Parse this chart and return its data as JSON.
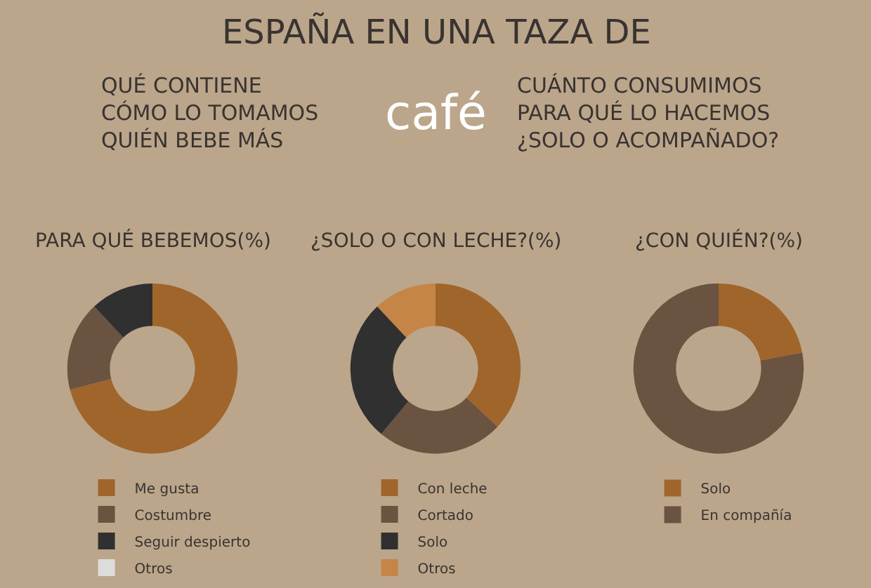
{
  "chart_data": [
    {
      "type": "other",
      "title": "ESPAÑA EN UNA TAZA DE",
      "annotations": [
        "café",
        "QUÉ CONTIENE\nCÓMO LO TOMAMOS\nQUIÉN BEBE MÁS",
        "CUÁNTO CONSUMIMOS\nPARA QUÉ LO HACEMOS\n¿SOLO O ACOMPAÑADO?"
      ]
    },
    {
      "type": "donut",
      "title": "PARA QUÉ BEBEMOS(%)",
      "categories": [
        "Me gusta",
        "Costumbre",
        "Seguir despierto",
        "Otros"
      ],
      "values": [
        71,
        17,
        12,
        0
      ],
      "colors": [
        "#a0652b",
        "#6a5340",
        "#303030",
        "#dcdcdc"
      ],
      "legend": "bottom"
    },
    {
      "type": "donut",
      "title": "¿SOLO O CON LECHE?(%)",
      "categories": [
        "Con leche",
        "Cortado",
        "Solo",
        "Otros"
      ],
      "values": [
        37,
        24,
        27,
        12
      ],
      "colors": [
        "#a0652b",
        "#6a5340",
        "#303030",
        "#c58546"
      ],
      "legend": "bottom"
    },
    {
      "type": "donut",
      "title": "¿CON QUIÉN?(%)",
      "categories": [
        "Solo",
        "En compañía"
      ],
      "values": [
        22,
        78
      ],
      "colors": [
        "#a0652b",
        "#6a5340"
      ],
      "legend": "bottom"
    }
  ]
}
